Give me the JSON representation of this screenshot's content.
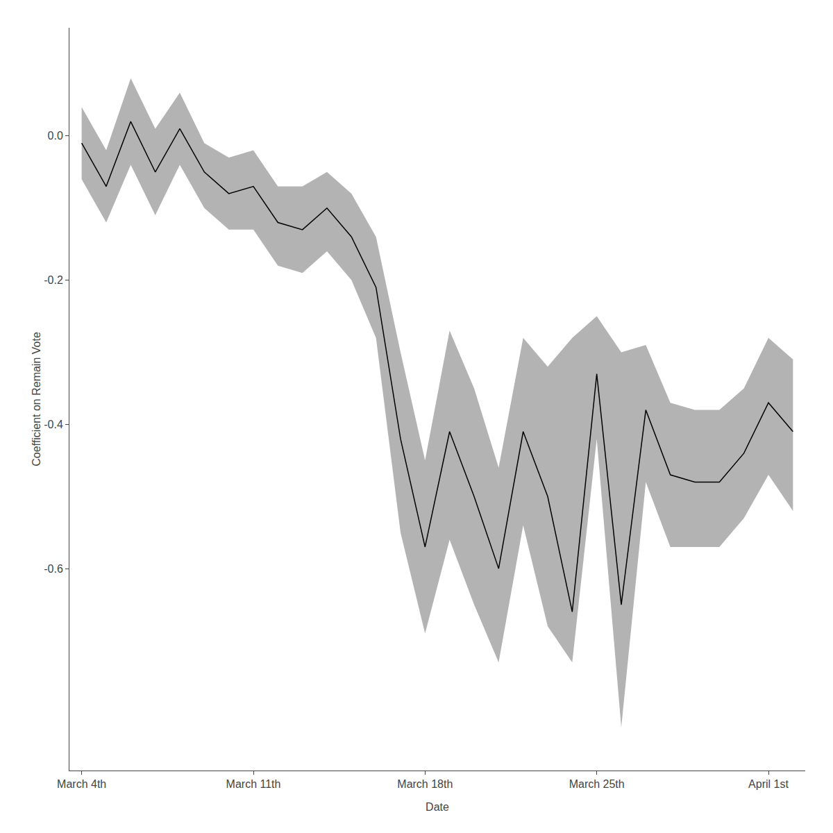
{
  "chart_data": {
    "type": "line",
    "xlabel": "Date",
    "ylabel": "Coefficient on Remain Vote",
    "x": [
      0,
      1,
      2,
      3,
      4,
      5,
      6,
      7,
      8,
      9,
      10,
      11,
      12,
      13,
      14,
      15,
      16,
      17,
      18,
      19,
      20,
      21,
      22,
      23,
      24,
      25,
      26,
      27,
      28,
      29
    ],
    "series": [
      {
        "type": "band",
        "color": "#808080",
        "upper": [
          0.04,
          -0.02,
          0.08,
          0.01,
          0.06,
          -0.01,
          -0.03,
          -0.02,
          -0.07,
          -0.07,
          -0.05,
          -0.08,
          -0.14,
          -0.3,
          -0.45,
          -0.27,
          -0.35,
          -0.46,
          -0.28,
          -0.32,
          -0.28,
          -0.25,
          -0.3,
          -0.29,
          -0.37,
          -0.38,
          -0.38,
          -0.35,
          -0.28,
          -0.31
        ],
        "lower": [
          -0.06,
          -0.12,
          -0.04,
          -0.11,
          -0.04,
          -0.1,
          -0.13,
          -0.13,
          -0.18,
          -0.19,
          -0.16,
          -0.2,
          -0.28,
          -0.55,
          -0.69,
          -0.56,
          -0.65,
          -0.73,
          -0.54,
          -0.68,
          -0.73,
          -0.42,
          -0.82,
          -0.48,
          -0.57,
          -0.57,
          -0.57,
          -0.53,
          -0.47,
          -0.52
        ]
      },
      {
        "type": "line",
        "color": "#000000",
        "values": [
          -0.01,
          -0.07,
          0.02,
          -0.05,
          0.01,
          -0.05,
          -0.08,
          -0.07,
          -0.12,
          -0.13,
          -0.1,
          -0.14,
          -0.21,
          -0.42,
          -0.57,
          -0.41,
          -0.5,
          -0.6,
          -0.41,
          -0.5,
          -0.66,
          -0.33,
          -0.65,
          -0.38,
          -0.47,
          -0.48,
          -0.48,
          -0.44,
          -0.37,
          -0.41
        ]
      }
    ],
    "xlim": [
      -0.5,
      29.5
    ],
    "xticks": [
      {
        "value": 0,
        "label": "March 4th"
      },
      {
        "value": 7,
        "label": "March 11th"
      },
      {
        "value": 14,
        "label": "March 18th"
      },
      {
        "value": 21,
        "label": "March 25th"
      },
      {
        "value": 28,
        "label": "April 1st"
      }
    ],
    "ylim": [
      -0.88,
      0.15
    ],
    "yticks": [
      {
        "value": 0.0,
        "label": "0.0"
      },
      -0.2,
      -0.4,
      -0.6
    ],
    "grid": false
  }
}
